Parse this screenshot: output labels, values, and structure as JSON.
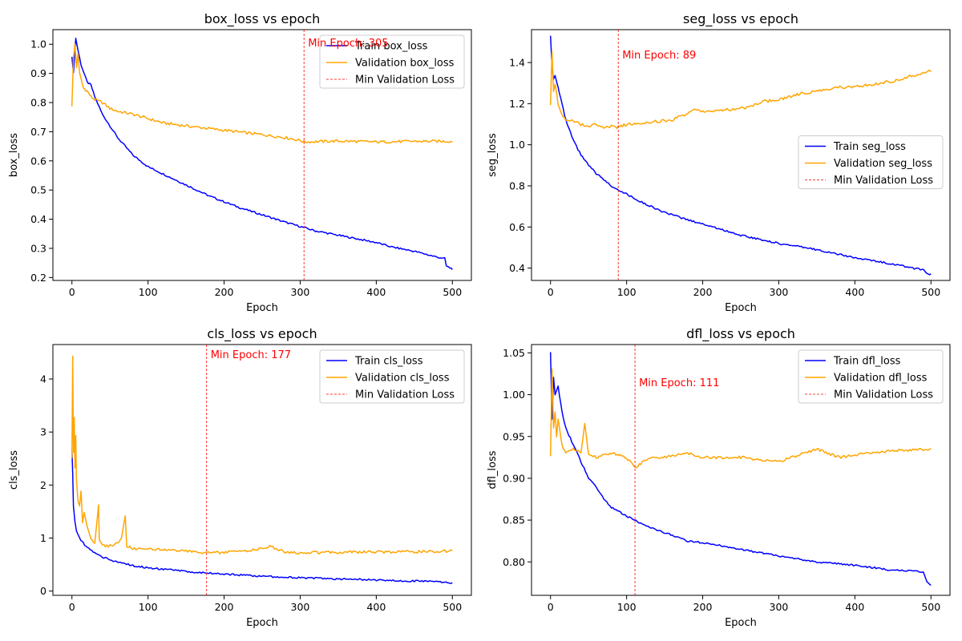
{
  "chart_data": [
    {
      "type": "line",
      "title": "box_loss vs epoch",
      "xlabel": "Epoch",
      "ylabel": "box_loss",
      "xlim": [
        -25,
        525
      ],
      "ylim": [
        0.19,
        1.05
      ],
      "xticks": [
        0,
        100,
        200,
        300,
        400,
        500
      ],
      "yticks": [
        0.2,
        0.3,
        0.4,
        0.5,
        0.6,
        0.7,
        0.8,
        0.9,
        1.0
      ],
      "ytick_labels": [
        "0.2",
        "0.3",
        "0.4",
        "0.5",
        "0.6",
        "0.7",
        "0.8",
        "0.9",
        "1.0"
      ],
      "legend_position": "top-right",
      "series": [
        {
          "name": "Train box_loss",
          "color": "#0000ff",
          "x": [
            0,
            2,
            5,
            8,
            12,
            16,
            20,
            25,
            30,
            40,
            50,
            60,
            70,
            80,
            90,
            100,
            120,
            140,
            160,
            180,
            200,
            220,
            250,
            280,
            300,
            320,
            350,
            380,
            400,
            420,
            450,
            480,
            490,
            492,
            495,
            500
          ],
          "y": [
            0.96,
            0.9,
            1.02,
            0.98,
            0.93,
            0.9,
            0.87,
            0.86,
            0.82,
            0.76,
            0.72,
            0.68,
            0.65,
            0.62,
            0.6,
            0.58,
            0.555,
            0.53,
            0.505,
            0.48,
            0.46,
            0.44,
            0.415,
            0.39,
            0.375,
            0.36,
            0.345,
            0.33,
            0.32,
            0.305,
            0.29,
            0.27,
            0.265,
            0.24,
            0.235,
            0.23
          ]
        },
        {
          "name": "Validation box_loss",
          "color": "#ffa500",
          "x": [
            0,
            2,
            4,
            6,
            8,
            10,
            12,
            15,
            20,
            25,
            30,
            40,
            50,
            60,
            80,
            100,
            120,
            150,
            200,
            250,
            280,
            300,
            305,
            350,
            400,
            450,
            500
          ],
          "y": [
            0.79,
            0.95,
            1.0,
            0.92,
            0.97,
            0.9,
            0.88,
            0.85,
            0.84,
            0.82,
            0.81,
            0.8,
            0.78,
            0.77,
            0.76,
            0.745,
            0.73,
            0.72,
            0.705,
            0.69,
            0.68,
            0.67,
            0.665,
            0.668,
            0.665,
            0.667,
            0.667
          ]
        }
      ],
      "vline": {
        "name": "Min Validation Loss",
        "x": 305,
        "color": "#ff0000",
        "label": "Min Epoch: 305"
      }
    },
    {
      "type": "line",
      "title": "seg_loss vs epoch",
      "xlabel": "Epoch",
      "ylabel": "seg_loss",
      "xlim": [
        -25,
        525
      ],
      "ylim": [
        0.34,
        1.56
      ],
      "xticks": [
        0,
        100,
        200,
        300,
        400,
        500
      ],
      "yticks": [
        0.4,
        0.6,
        0.8,
        1.0,
        1.2,
        1.4
      ],
      "ytick_labels": [
        "0.4",
        "0.6",
        "0.8",
        "1.0",
        "1.2",
        "1.4"
      ],
      "legend_position": "center-right",
      "series": [
        {
          "name": "Train seg_loss",
          "color": "#0000ff",
          "x": [
            0,
            2,
            4,
            6,
            10,
            15,
            20,
            30,
            40,
            50,
            60,
            70,
            80,
            90,
            100,
            120,
            150,
            180,
            200,
            250,
            300,
            350,
            400,
            450,
            490,
            495,
            500
          ],
          "y": [
            1.53,
            1.38,
            1.32,
            1.34,
            1.28,
            1.2,
            1.12,
            1.02,
            0.95,
            0.9,
            0.86,
            0.83,
            0.8,
            0.78,
            0.76,
            0.72,
            0.67,
            0.635,
            0.615,
            0.56,
            0.52,
            0.49,
            0.45,
            0.42,
            0.39,
            0.37,
            0.37
          ]
        },
        {
          "name": "Validation seg_loss",
          "color": "#ffa500",
          "x": [
            0,
            2,
            4,
            6,
            8,
            10,
            15,
            20,
            30,
            40,
            50,
            60,
            70,
            80,
            89,
            100,
            130,
            160,
            190,
            200,
            230,
            260,
            280,
            300,
            330,
            350,
            380,
            400,
            450,
            500
          ],
          "y": [
            1.19,
            1.45,
            1.26,
            1.3,
            1.25,
            1.2,
            1.15,
            1.12,
            1.12,
            1.1,
            1.09,
            1.1,
            1.08,
            1.09,
            1.085,
            1.1,
            1.11,
            1.12,
            1.17,
            1.16,
            1.17,
            1.18,
            1.21,
            1.22,
            1.25,
            1.26,
            1.28,
            1.28,
            1.31,
            1.36
          ]
        }
      ],
      "vline": {
        "name": "Min Validation Loss",
        "x": 89,
        "color": "#ff0000",
        "label": "Min Epoch: 89"
      }
    },
    {
      "type": "line",
      "title": "cls_loss vs epoch",
      "xlabel": "Epoch",
      "ylabel": "cls_loss",
      "xlim": [
        -25,
        525
      ],
      "ylim": [
        -0.08,
        4.65
      ],
      "xticks": [
        0,
        100,
        200,
        300,
        400,
        500
      ],
      "yticks": [
        0,
        1,
        2,
        3,
        4
      ],
      "ytick_labels": [
        "0",
        "1",
        "2",
        "3",
        "4"
      ],
      "legend_position": "top-right",
      "series": [
        {
          "name": "Train cls_loss",
          "color": "#0000ff",
          "x": [
            0,
            1,
            2,
            4,
            6,
            10,
            15,
            20,
            30,
            40,
            60,
            80,
            100,
            150,
            200,
            250,
            300,
            350,
            400,
            450,
            490,
            495,
            500
          ],
          "y": [
            2.7,
            2.2,
            1.6,
            1.3,
            1.15,
            1.0,
            0.9,
            0.82,
            0.72,
            0.64,
            0.55,
            0.48,
            0.44,
            0.37,
            0.32,
            0.28,
            0.25,
            0.23,
            0.21,
            0.19,
            0.17,
            0.15,
            0.15
          ]
        },
        {
          "name": "Validation cls_loss",
          "color": "#ffa500",
          "x": [
            0,
            1,
            2,
            3,
            4,
            5,
            6,
            8,
            10,
            12,
            14,
            16,
            20,
            25,
            30,
            35,
            36,
            40,
            50,
            60,
            65,
            70,
            72,
            80,
            100,
            150,
            177,
            200,
            220,
            250,
            260,
            280,
            300,
            350,
            400,
            450,
            500
          ],
          "y": [
            2.5,
            4.43,
            2.6,
            3.27,
            2.3,
            2.95,
            2.1,
            1.7,
            1.6,
            1.9,
            1.3,
            1.5,
            1.2,
            1.0,
            0.9,
            1.62,
            0.95,
            0.85,
            0.85,
            0.9,
            1.0,
            1.43,
            0.85,
            0.8,
            0.8,
            0.75,
            0.72,
            0.73,
            0.75,
            0.8,
            0.85,
            0.74,
            0.72,
            0.73,
            0.74,
            0.74,
            0.76
          ]
        }
      ],
      "vline": {
        "name": "Min Validation Loss",
        "x": 177,
        "color": "#ff0000",
        "label": "Min Epoch: 177"
      }
    },
    {
      "type": "line",
      "title": "dfl_loss vs epoch",
      "xlabel": "Epoch",
      "ylabel": "dfl_loss",
      "xlim": [
        -25,
        525
      ],
      "ylim": [
        0.76,
        1.06
      ],
      "xticks": [
        0,
        100,
        200,
        300,
        400,
        500
      ],
      "yticks": [
        0.8,
        0.85,
        0.9,
        0.95,
        1.0,
        1.05
      ],
      "ytick_labels": [
        "0.80",
        "0.85",
        "0.90",
        "0.95",
        "1.00",
        "1.05"
      ],
      "legend_position": "top-right",
      "series": [
        {
          "name": "Train dfl_loss",
          "color": "#0000ff",
          "x": [
            0,
            2,
            4,
            6,
            10,
            15,
            20,
            30,
            40,
            50,
            60,
            70,
            80,
            90,
            100,
            120,
            150,
            180,
            200,
            250,
            300,
            350,
            400,
            450,
            490,
            495,
            500
          ],
          "y": [
            1.05,
            0.97,
            1.02,
            1.0,
            1.01,
            0.98,
            0.96,
            0.94,
            0.92,
            0.9,
            0.89,
            0.875,
            0.865,
            0.86,
            0.855,
            0.845,
            0.835,
            0.825,
            0.823,
            0.815,
            0.807,
            0.8,
            0.796,
            0.79,
            0.788,
            0.775,
            0.773
          ]
        },
        {
          "name": "Validation dfl_loss",
          "color": "#ffa500",
          "x": [
            0,
            2,
            4,
            6,
            8,
            10,
            15,
            20,
            30,
            40,
            45,
            50,
            60,
            80,
            100,
            111,
            130,
            150,
            180,
            200,
            250,
            300,
            350,
            380,
            400,
            450,
            500
          ],
          "y": [
            0.925,
            1.03,
            0.96,
            0.98,
            0.95,
            0.97,
            0.94,
            0.93,
            0.935,
            0.93,
            0.965,
            0.93,
            0.925,
            0.93,
            0.925,
            0.913,
            0.925,
            0.925,
            0.93,
            0.925,
            0.925,
            0.92,
            0.935,
            0.925,
            0.928,
            0.933,
            0.935
          ]
        }
      ],
      "vline": {
        "name": "Min Validation Loss",
        "x": 111,
        "color": "#ff0000",
        "label": "Min Epoch: 111"
      }
    }
  ]
}
